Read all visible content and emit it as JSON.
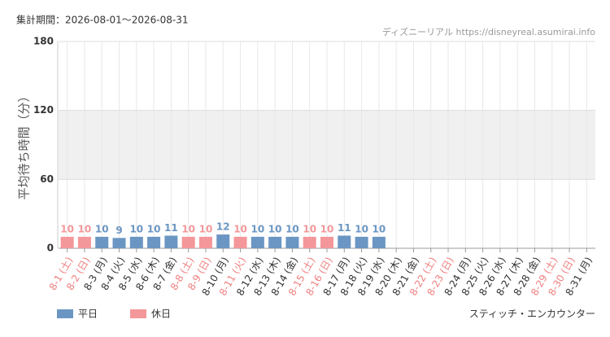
{
  "chart_data": {
    "type": "bar",
    "period": "集計期間：2026-08-01～2026-08-31",
    "source": "ディズニーリアル https://disneyreal.asumirai.info",
    "title": "スティッチ・エンカウンター",
    "y_label": "平均待ち時間（分）",
    "categories": [
      "8-1 (土)",
      "8-2 (日)",
      "8-3 (月)",
      "8-4 (火)",
      "8-5 (水)",
      "8-6 (木)",
      "8-7 (金)",
      "8-8 (土)",
      "8-9 (日)",
      "8-10 (月)",
      "8-11 (火)",
      "8-12 (水)",
      "8-13 (木)",
      "8-14 (金)",
      "8-15 (土)",
      "8-16 (日)",
      "8-17 (月)",
      "8-18 (火)",
      "8-19 (水)",
      "8-20 (木)",
      "8-21 (金)",
      "8-22 (土)",
      "8-23 (日)",
      "8-24 (月)",
      "8-25 (火)",
      "8-26 (水)",
      "8-27 (木)",
      "8-28 (金)",
      "8-29 (土)",
      "8-30 (日)",
      "8-31 (月)"
    ],
    "category_colors": [
      "#f08080",
      "#f08080",
      "#333333",
      "#333333",
      "#333333",
      "#333333",
      "#333333",
      "#f08080",
      "#f08080",
      "#333333",
      "#f08080",
      "#333333",
      "#333333",
      "#333333",
      "#f08080",
      "#f08080",
      "#333333",
      "#333333",
      "#333333",
      "#333333",
      "#333333",
      "#f08080",
      "#f08080",
      "#333333",
      "#333333",
      "#333333",
      "#333333",
      "#333333",
      "#f08080",
      "#f08080",
      "#333333"
    ],
    "series": [
      {
        "name": "平日",
        "color": "#6b96c3",
        "values": [
          null,
          null,
          10,
          9,
          10,
          10,
          11,
          null,
          null,
          12,
          null,
          10,
          10,
          10,
          null,
          null,
          11,
          10,
          10,
          null,
          null,
          null,
          null,
          null,
          null,
          null,
          null,
          null,
          null,
          null,
          null
        ]
      },
      {
        "name": "休日",
        "color": "#f4979a",
        "values": [
          10,
          10,
          null,
          null,
          null,
          null,
          null,
          10,
          10,
          null,
          10,
          null,
          null,
          null,
          10,
          10,
          null,
          null,
          null,
          null,
          null,
          null,
          null,
          null,
          null,
          null,
          null,
          null,
          null,
          null,
          null
        ]
      }
    ],
    "ylim": [
      0,
      180
    ],
    "yticks": [
      0,
      60,
      120,
      180
    ],
    "grid": true
  }
}
